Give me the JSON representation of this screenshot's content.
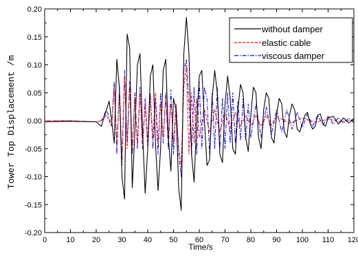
{
  "chart_data": {
    "type": "line",
    "xlabel": "Time/s",
    "ylabel": "Tower Top Displacement /m",
    "xlim": [
      0,
      120
    ],
    "ylim": [
      -0.2,
      0.2
    ],
    "xticks": [
      "0",
      "10",
      "20",
      "30",
      "40",
      "50",
      "60",
      "70",
      "80",
      "90",
      "100",
      "110",
      "120"
    ],
    "yticks": [
      "-0.20",
      "-0.15",
      "-0.10",
      "-0.05",
      "0.00",
      "0.05",
      "0.10",
      "0.15",
      "0.20"
    ],
    "grid": false,
    "legend_position": "top-right",
    "colors": {
      "without": "#000000",
      "elastic": "#ff0000",
      "viscous": "#0000ff"
    },
    "series": [
      {
        "name": "without damper",
        "x": [
          0,
          10,
          20,
          22,
          24,
          25,
          26,
          27,
          28,
          29,
          30,
          31,
          32,
          33,
          34,
          35,
          36,
          37,
          38,
          39,
          40,
          41,
          42,
          43,
          44,
          45,
          46,
          47,
          48,
          49,
          50,
          51,
          52,
          53,
          54,
          55,
          56,
          57,
          58,
          59,
          60,
          61,
          62,
          63,
          64,
          65,
          66,
          67,
          68,
          69,
          70,
          71,
          72,
          73,
          74,
          75,
          76,
          77,
          78,
          79,
          80,
          81,
          82,
          83,
          84,
          85,
          86,
          87,
          88,
          89,
          90,
          91,
          92,
          93,
          94,
          95,
          96,
          97,
          98,
          99,
          100,
          101,
          102,
          103,
          104,
          105,
          106,
          107,
          108,
          109,
          110,
          112,
          114,
          116,
          118,
          120
        ],
        "y": [
          -0.002,
          -0.001,
          -0.002,
          -0.01,
          0.02,
          0.035,
          0.0,
          -0.04,
          0.11,
          0.06,
          -0.1,
          -0.14,
          0.155,
          0.13,
          -0.12,
          -0.02,
          0.1,
          0.12,
          -0.02,
          -0.13,
          -0.05,
          0.08,
          0.1,
          -0.04,
          -0.125,
          -0.05,
          0.09,
          0.11,
          -0.03,
          -0.09,
          0.04,
          0.02,
          -0.12,
          -0.16,
          0.12,
          0.185,
          0.12,
          -0.06,
          -0.11,
          0.0,
          0.08,
          0.09,
          0.0,
          -0.08,
          -0.07,
          0.04,
          0.09,
          0.05,
          -0.06,
          -0.075,
          0.03,
          0.08,
          0.04,
          -0.05,
          -0.06,
          0.02,
          0.065,
          0.05,
          -0.03,
          -0.055,
          0.01,
          0.06,
          0.05,
          -0.03,
          -0.05,
          0.02,
          0.05,
          0.04,
          -0.03,
          -0.04,
          0.01,
          0.04,
          0.03,
          -0.02,
          -0.03,
          0.01,
          0.03,
          0.02,
          -0.015,
          -0.02,
          -0.005,
          0.01,
          0.015,
          -0.005,
          -0.015,
          -0.01,
          0.01,
          0.012,
          -0.005,
          -0.01,
          0.005,
          0.008,
          -0.006,
          0.005,
          -0.004,
          0.004
        ]
      },
      {
        "name": "elastic cable",
        "x": [
          0,
          10,
          20,
          22,
          24,
          26,
          27,
          28,
          29,
          30,
          31,
          32,
          33,
          34,
          35,
          36,
          37,
          38,
          39,
          40,
          41,
          42,
          43,
          44,
          45,
          46,
          47,
          48,
          49,
          50,
          51,
          52,
          53,
          54,
          55,
          56,
          57,
          58,
          59,
          60,
          62,
          64,
          66,
          68,
          70,
          72,
          74,
          76,
          78,
          80,
          82,
          84,
          86,
          88,
          90,
          95,
          100,
          105,
          110,
          115,
          120
        ],
        "y": [
          0.0,
          0.0,
          -0.002,
          0.0,
          0.01,
          -0.01,
          0.06,
          -0.04,
          0.05,
          -0.07,
          0.08,
          -0.05,
          0.06,
          -0.05,
          0.04,
          -0.04,
          0.05,
          -0.04,
          0.03,
          -0.05,
          0.04,
          -0.03,
          0.05,
          -0.04,
          0.03,
          -0.03,
          0.04,
          -0.03,
          0.03,
          -0.04,
          0.03,
          -0.05,
          -0.08,
          0.06,
          0.1,
          -0.06,
          0.05,
          -0.04,
          0.04,
          -0.03,
          0.02,
          -0.02,
          0.02,
          -0.02,
          0.015,
          -0.015,
          0.015,
          -0.01,
          0.01,
          -0.01,
          0.01,
          -0.01,
          0.01,
          -0.008,
          0.008,
          -0.005,
          0.005,
          -0.003,
          0.003,
          -0.002,
          0.002
        ]
      },
      {
        "name": "viscous damper",
        "x": [
          0,
          10,
          20,
          22,
          24,
          26,
          27,
          28,
          29,
          30,
          31,
          32,
          33,
          34,
          35,
          36,
          37,
          38,
          39,
          40,
          41,
          42,
          43,
          44,
          45,
          46,
          47,
          48,
          49,
          50,
          51,
          52,
          53,
          54,
          55,
          56,
          57,
          58,
          59,
          60,
          61,
          62,
          63,
          64,
          65,
          66,
          67,
          68,
          69,
          70,
          71,
          72,
          73,
          74,
          75,
          76,
          77,
          78,
          79,
          80,
          82,
          84,
          86,
          88,
          90,
          92,
          94,
          96,
          98,
          100,
          102,
          104,
          106,
          108,
          110,
          112,
          114,
          116,
          118,
          120
        ],
        "y": [
          0.0,
          0.0,
          -0.002,
          0.0,
          0.02,
          -0.01,
          0.07,
          -0.06,
          0.06,
          -0.08,
          0.09,
          -0.04,
          0.07,
          -0.06,
          0.05,
          -0.05,
          0.06,
          -0.05,
          0.04,
          -0.04,
          0.05,
          -0.05,
          0.04,
          -0.06,
          0.05,
          -0.04,
          0.05,
          -0.05,
          0.055,
          -0.06,
          0.03,
          -0.06,
          -0.1,
          0.09,
          0.11,
          0.03,
          -0.06,
          0.06,
          -0.06,
          0.07,
          -0.05,
          0.06,
          0.04,
          -0.06,
          0.05,
          -0.05,
          0.06,
          -0.05,
          0.04,
          -0.05,
          0.05,
          -0.04,
          0.05,
          -0.04,
          0.035,
          -0.035,
          0.04,
          -0.035,
          0.03,
          -0.03,
          0.03,
          -0.03,
          0.025,
          -0.025,
          0.02,
          -0.02,
          0.02,
          -0.015,
          0.015,
          -0.012,
          0.012,
          -0.01,
          0.01,
          -0.008,
          0.008,
          -0.006,
          0.006,
          -0.005,
          0.005,
          -0.004
        ]
      }
    ]
  }
}
